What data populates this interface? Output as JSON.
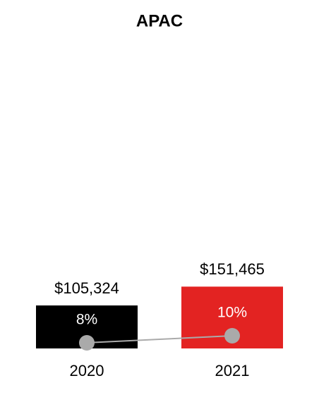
{
  "chart_data": {
    "type": "bar",
    "title": "APAC",
    "categories": [
      "2020",
      "2021"
    ],
    "ylim": [
      0,
      750000
    ],
    "y2lim": [
      6.4,
      93.2
    ],
    "series": [
      {
        "type": "bar",
        "values": [
          105324,
          151465
        ],
        "value_labels": [
          "$105,324",
          "$151,465"
        ],
        "colors": [
          "#000000",
          "#e32322"
        ]
      },
      {
        "type": "line",
        "axis": "y2",
        "color": "#aaaaaa",
        "values": [
          8,
          10
        ],
        "value_labels": [
          "8%",
          "10%"
        ]
      }
    ]
  }
}
